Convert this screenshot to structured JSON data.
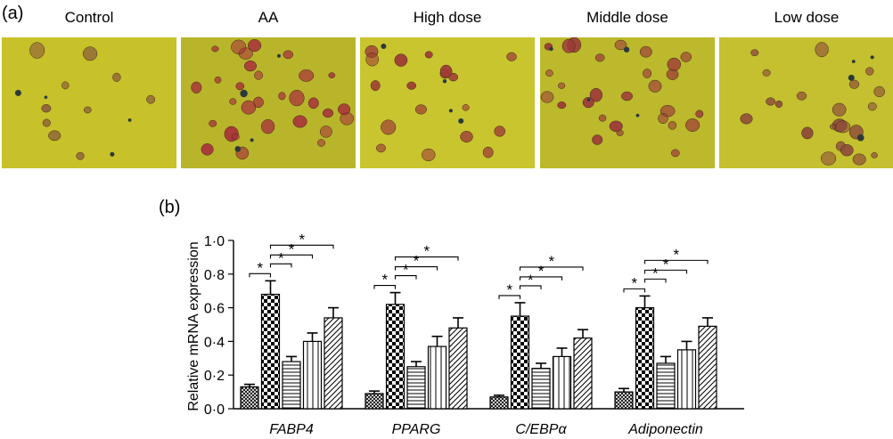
{
  "panel_a": {
    "label": "(a)",
    "images": [
      {
        "title": "Control",
        "bg": "#c7c12a",
        "cells": 10,
        "cell_color": "#8a5a3a"
      },
      {
        "title": "AA",
        "bg": "#b9b52b",
        "cells": 30,
        "cell_color": "#a8303a"
      },
      {
        "title": "High dose",
        "bg": "#c9c52e",
        "cells": 18,
        "cell_color": "#9e3a36"
      },
      {
        "title": "Middle dose",
        "bg": "#bcb92c",
        "cells": 28,
        "cell_color": "#9c3a38"
      },
      {
        "title": "Low dose",
        "bg": "#c4c02f",
        "cells": 22,
        "cell_color": "#8e4a3a"
      }
    ]
  },
  "panel_b": {
    "label": "(b)"
  },
  "chart_data": {
    "type": "bar",
    "ylabel": "Relative mRNA expression",
    "ylim": [
      0,
      1.0
    ],
    "yticks": [
      "0·0",
      "0·2",
      "0·4",
      "0·6",
      "0·8",
      "1·0"
    ],
    "categories": [
      "FABP4",
      "PPARG",
      "C/EBPα",
      "Adiponectin"
    ],
    "series": [
      {
        "values": [
          0.13,
          0.09,
          0.07,
          0.1
        ],
        "errors": [
          0.015,
          0.015,
          0.01,
          0.02
        ],
        "pattern": "dots"
      },
      {
        "values": [
          0.68,
          0.62,
          0.55,
          0.6
        ],
        "errors": [
          0.08,
          0.07,
          0.08,
          0.07
        ],
        "pattern": "checker"
      },
      {
        "values": [
          0.28,
          0.25,
          0.24,
          0.27
        ],
        "errors": [
          0.03,
          0.03,
          0.03,
          0.04
        ],
        "pattern": "horizontal"
      },
      {
        "values": [
          0.4,
          0.37,
          0.31,
          0.35
        ],
        "errors": [
          0.05,
          0.06,
          0.05,
          0.05
        ],
        "pattern": "vertical"
      },
      {
        "values": [
          0.54,
          0.48,
          0.42,
          0.49
        ],
        "errors": [
          0.06,
          0.06,
          0.05,
          0.05
        ],
        "pattern": "diagonal"
      }
    ],
    "significance_marker": "*",
    "grid": false
  }
}
